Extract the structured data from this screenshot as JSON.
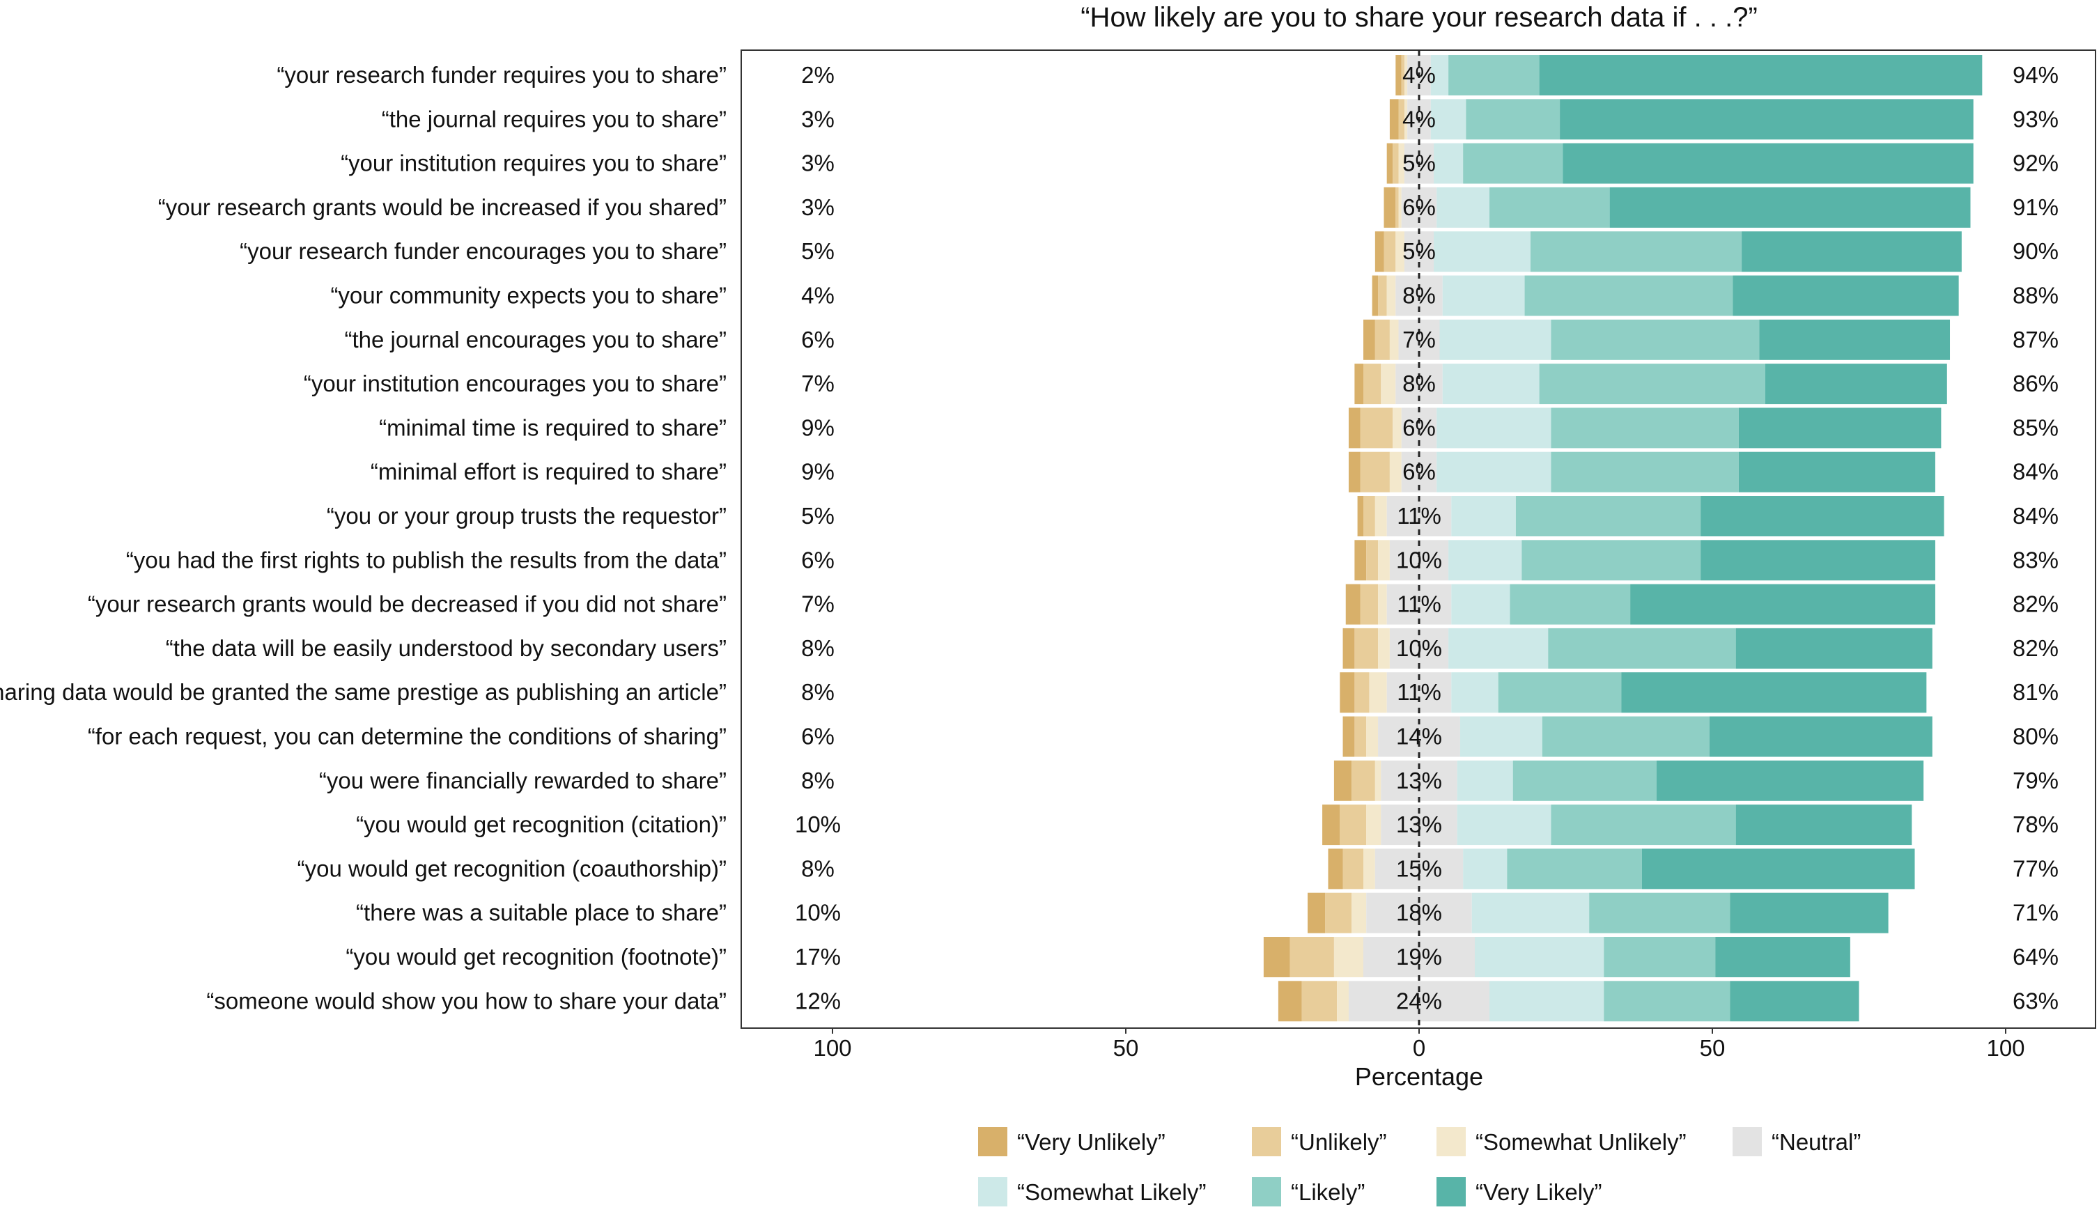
{
  "chart_data": {
    "type": "bar",
    "subtype": "diverging-stacked-likert",
    "title": "“How likely are you to share your research data if . . .?”",
    "xlabel": "Percentage",
    "xlim": [
      -100,
      100
    ],
    "xticks": [
      -100,
      -50,
      0,
      50,
      100
    ],
    "xtick_labels": [
      "100",
      "50",
      "0",
      "50",
      "100"
    ],
    "legend_position": "bottom",
    "response_levels": [
      "“Very Unlikely”",
      "“Unlikely”",
      "“Somewhat Unlikely”",
      "“Neutral”",
      "“Somewhat Likely”",
      "“Likely”",
      "“Very Likely”"
    ],
    "colors": [
      "#d8b06a",
      "#e8cd9a",
      "#f3e8cc",
      "#e3e3e3",
      "#cde9e8",
      "#8fcfc5",
      "#58b4a8"
    ],
    "categories": [
      "“your research funder requires you to share”",
      "“the journal requires you to share”",
      "“your institution requires you to share”",
      "“your research grants would be increased if you shared”",
      "“your research funder encourages you to share”",
      "“your community expects you to share”",
      "“the journal encourages you to share”",
      "“your institution encourages you to share”",
      "“minimal time is required to share”",
      "“minimal effort is required to share”",
      "“you or your group trusts the requestor”",
      "“you had the first rights to publish the results from the data”",
      "“your research grants would be decreased if you did not share”",
      "“the data will be easily understood by secondary users”",
      "“sharing data would be granted the same prestige as publishing an article”",
      "“for each request, you can determine the conditions of sharing”",
      "“you were financially rewarded to share”",
      "“you would get recognition (citation)”",
      "“you would get recognition (coauthorship)”",
      "“there was a suitable place to share”",
      "“you would get recognition (footnote)”",
      "“someone would show you how to share your data”"
    ],
    "left_labels": [
      "2%",
      "3%",
      "3%",
      "3%",
      "5%",
      "4%",
      "6%",
      "7%",
      "9%",
      "9%",
      "5%",
      "6%",
      "7%",
      "8%",
      "8%",
      "6%",
      "8%",
      "10%",
      "8%",
      "10%",
      "17%",
      "12%"
    ],
    "center_labels": [
      "4%",
      "4%",
      "5%",
      "6%",
      "5%",
      "8%",
      "7%",
      "8%",
      "6%",
      "6%",
      "11%",
      "10%",
      "11%",
      "10%",
      "11%",
      "14%",
      "13%",
      "13%",
      "15%",
      "18%",
      "19%",
      "24%"
    ],
    "right_labels": [
      "94%",
      "93%",
      "92%",
      "91%",
      "90%",
      "88%",
      "87%",
      "86%",
      "85%",
      "84%",
      "84%",
      "83%",
      "82%",
      "82%",
      "81%",
      "80%",
      "79%",
      "78%",
      "77%",
      "71%",
      "64%",
      "63%"
    ],
    "series": [
      {
        "name": "“Very Unlikely”",
        "values": [
          1,
          1.5,
          1,
          2,
          1.5,
          1,
          2,
          1.5,
          2,
          2,
          1,
          2,
          2.5,
          2,
          2.5,
          2,
          3,
          3,
          2.5,
          3,
          4.5,
          4
        ]
      },
      {
        "name": "“Unlikely”",
        "values": [
          0.5,
          1,
          1,
          0.5,
          2,
          1.5,
          2.5,
          3,
          5.5,
          5,
          2,
          2,
          3,
          4,
          2.5,
          2,
          4,
          4.5,
          3.5,
          4.5,
          7.5,
          6
        ]
      },
      {
        "name": "“Somewhat Unlikely”",
        "values": [
          0.5,
          0.5,
          1,
          0.5,
          1.5,
          1.5,
          1.5,
          2.5,
          1.5,
          2,
          2,
          2,
          1.5,
          2,
          3,
          2,
          1,
          2.5,
          2,
          2.5,
          5,
          2
        ],
        "note": ""
      },
      {
        "name": "“Neutral”",
        "values": [
          4,
          4,
          5,
          6,
          5,
          8,
          7,
          8,
          6,
          6,
          11,
          10,
          11,
          10,
          11,
          14,
          13,
          13,
          15,
          18,
          19,
          24
        ]
      },
      {
        "name": "“Somewhat Likely”",
        "values": [
          3,
          6,
          5,
          9,
          16.5,
          14,
          19,
          16.5,
          19.5,
          19.5,
          11,
          12.5,
          10,
          17,
          8,
          14,
          9.5,
          16,
          7.5,
          20,
          22,
          19.5
        ]
      },
      {
        "name": "“Likely”",
        "values": [
          15.5,
          16,
          17,
          20.5,
          36,
          35.5,
          35.5,
          38.5,
          32,
          32,
          31.5,
          30.5,
          20.5,
          32,
          21,
          28.5,
          24.5,
          31.5,
          23,
          24,
          19,
          21.5
        ]
      },
      {
        "name": "“Very Likely”",
        "values": [
          75.5,
          70.5,
          70,
          61.5,
          37.5,
          38.5,
          32.5,
          31,
          34.5,
          33.5,
          41.5,
          40,
          52,
          33.5,
          52,
          38,
          45.5,
          30,
          46.5,
          27,
          23,
          22
        ]
      }
    ]
  }
}
